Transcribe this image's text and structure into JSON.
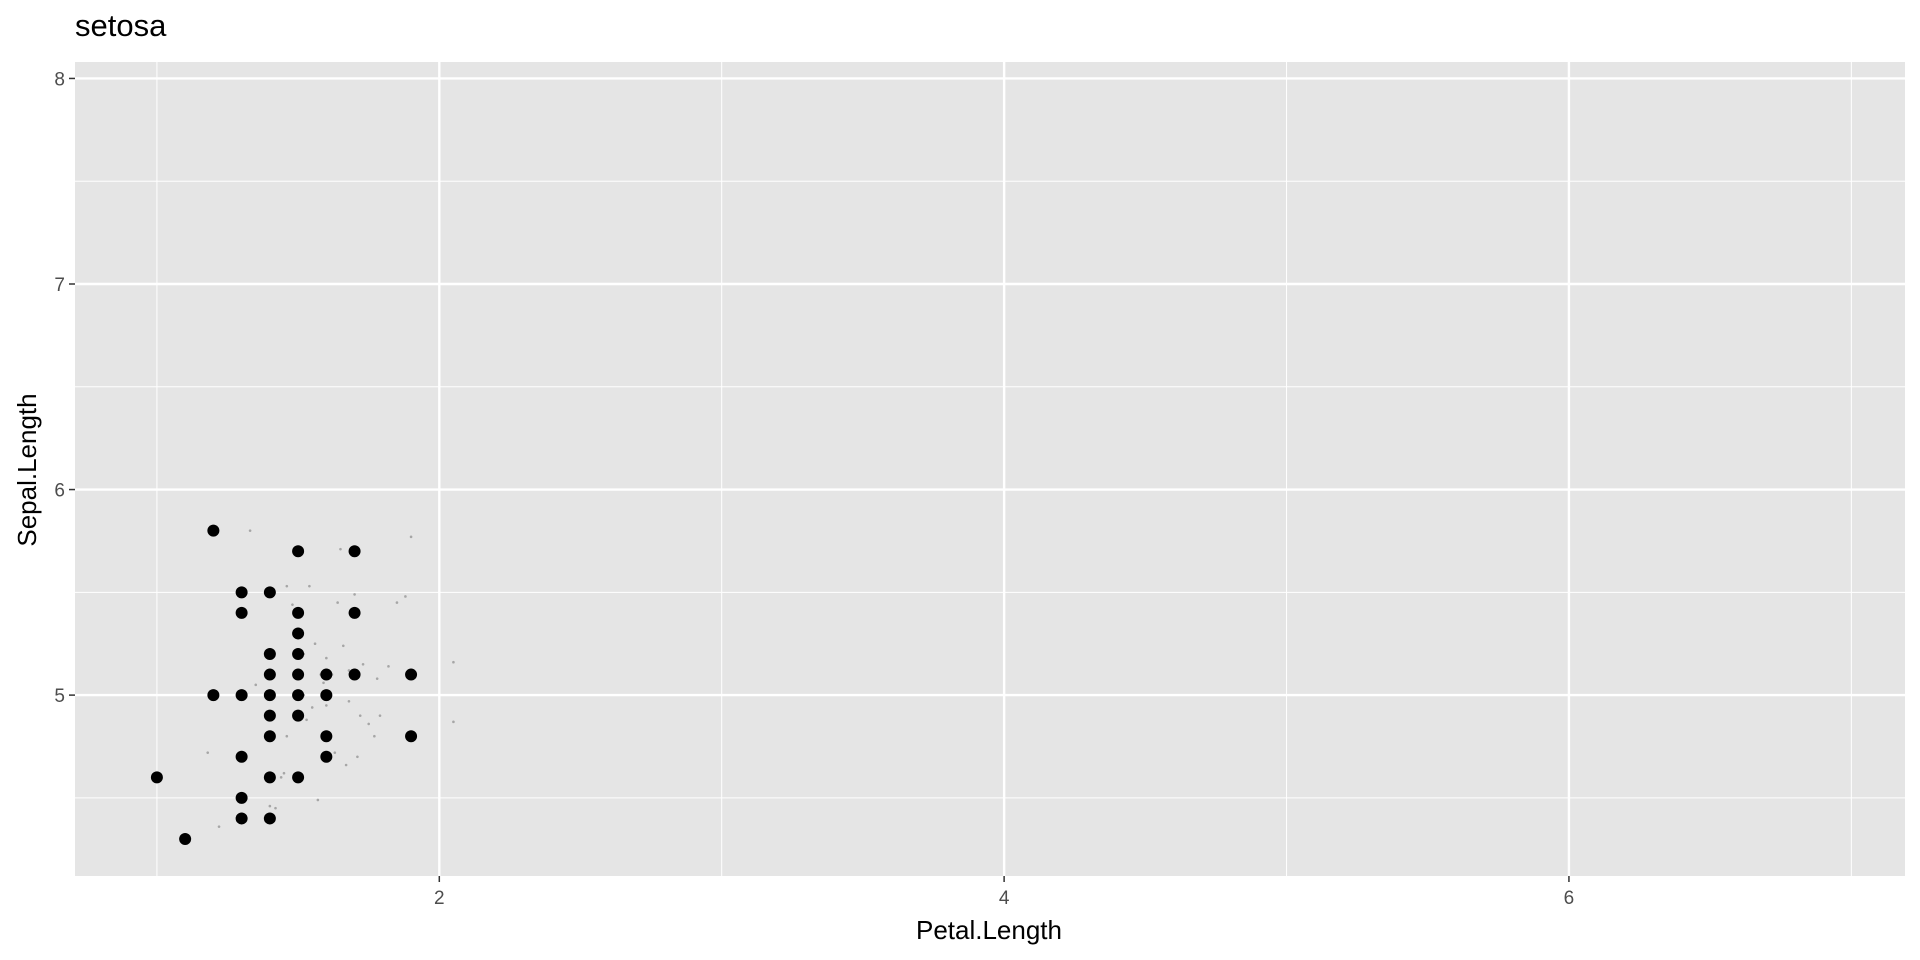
{
  "chart_data": {
    "type": "scatter",
    "title": "setosa",
    "xlabel": "Petal.Length",
    "ylabel": "Sepal.Length",
    "xlim": [
      0.71,
      7.19
    ],
    "ylim": [
      4.12,
      8.08
    ],
    "x_ticks_major": [
      2,
      4,
      6
    ],
    "x_ticks_minor": [
      1,
      3,
      5,
      7
    ],
    "y_ticks_major": [
      5,
      6,
      7,
      8
    ],
    "y_ticks_minor": [
      4.5,
      5.5,
      6.5,
      7.5
    ],
    "grid": true,
    "panel_color": "#e5e5e5",
    "grid_color": "#ffffff",
    "point_color": "#000000",
    "jitter_color": "#a6a6a6",
    "points": [
      {
        "x": 1.0,
        "y": 4.6
      },
      {
        "x": 1.1,
        "y": 4.3
      },
      {
        "x": 1.2,
        "y": 5.8
      },
      {
        "x": 1.2,
        "y": 5.0
      },
      {
        "x": 1.3,
        "y": 5.5
      },
      {
        "x": 1.3,
        "y": 5.4
      },
      {
        "x": 1.3,
        "y": 5.0
      },
      {
        "x": 1.3,
        "y": 4.7
      },
      {
        "x": 1.3,
        "y": 4.5
      },
      {
        "x": 1.3,
        "y": 4.4
      },
      {
        "x": 1.4,
        "y": 5.5
      },
      {
        "x": 1.4,
        "y": 5.2
      },
      {
        "x": 1.4,
        "y": 5.1
      },
      {
        "x": 1.4,
        "y": 5.0
      },
      {
        "x": 1.4,
        "y": 4.9
      },
      {
        "x": 1.4,
        "y": 4.8
      },
      {
        "x": 1.4,
        "y": 4.6
      },
      {
        "x": 1.4,
        "y": 4.4
      },
      {
        "x": 1.5,
        "y": 5.7
      },
      {
        "x": 1.5,
        "y": 5.4
      },
      {
        "x": 1.5,
        "y": 5.3
      },
      {
        "x": 1.5,
        "y": 5.2
      },
      {
        "x": 1.5,
        "y": 5.1
      },
      {
        "x": 1.5,
        "y": 5.0
      },
      {
        "x": 1.5,
        "y": 4.9
      },
      {
        "x": 1.5,
        "y": 4.6
      },
      {
        "x": 1.6,
        "y": 5.1
      },
      {
        "x": 1.6,
        "y": 5.0
      },
      {
        "x": 1.6,
        "y": 4.8
      },
      {
        "x": 1.6,
        "y": 4.7
      },
      {
        "x": 1.7,
        "y": 5.7
      },
      {
        "x": 1.7,
        "y": 5.4
      },
      {
        "x": 1.7,
        "y": 5.1
      },
      {
        "x": 1.9,
        "y": 5.1
      },
      {
        "x": 1.9,
        "y": 4.8
      }
    ],
    "jitter_points": [
      {
        "x": 1.18,
        "y": 4.72
      },
      {
        "x": 1.22,
        "y": 4.36
      },
      {
        "x": 1.33,
        "y": 5.8
      },
      {
        "x": 1.4,
        "y": 4.46
      },
      {
        "x": 1.42,
        "y": 4.45
      },
      {
        "x": 1.44,
        "y": 4.6
      },
      {
        "x": 1.46,
        "y": 5.53
      },
      {
        "x": 1.46,
        "y": 4.8
      },
      {
        "x": 1.48,
        "y": 5.44
      },
      {
        "x": 1.5,
        "y": 4.98
      },
      {
        "x": 1.52,
        "y": 5.2
      },
      {
        "x": 1.53,
        "y": 4.88
      },
      {
        "x": 1.54,
        "y": 5.53
      },
      {
        "x": 1.55,
        "y": 4.94
      },
      {
        "x": 1.56,
        "y": 5.25
      },
      {
        "x": 1.57,
        "y": 4.49
      },
      {
        "x": 1.58,
        "y": 5.1
      },
      {
        "x": 1.59,
        "y": 5.06
      },
      {
        "x": 1.6,
        "y": 5.18
      },
      {
        "x": 1.62,
        "y": 5.1
      },
      {
        "x": 1.63,
        "y": 4.72
      },
      {
        "x": 1.64,
        "y": 5.45
      },
      {
        "x": 1.65,
        "y": 5.71
      },
      {
        "x": 1.66,
        "y": 5.24
      },
      {
        "x": 1.67,
        "y": 4.66
      },
      {
        "x": 1.68,
        "y": 4.97
      },
      {
        "x": 1.7,
        "y": 5.49
      },
      {
        "x": 1.71,
        "y": 4.7
      },
      {
        "x": 1.72,
        "y": 4.9
      },
      {
        "x": 1.73,
        "y": 5.15
      },
      {
        "x": 1.75,
        "y": 4.86
      },
      {
        "x": 1.77,
        "y": 4.8
      },
      {
        "x": 1.78,
        "y": 5.08
      },
      {
        "x": 1.79,
        "y": 4.9
      },
      {
        "x": 1.82,
        "y": 5.14
      },
      {
        "x": 1.85,
        "y": 5.45
      },
      {
        "x": 1.88,
        "y": 5.48
      },
      {
        "x": 1.9,
        "y": 5.77
      },
      {
        "x": 2.05,
        "y": 5.16
      },
      {
        "x": 2.05,
        "y": 4.87
      },
      {
        "x": 1.35,
        "y": 5.05
      },
      {
        "x": 1.45,
        "y": 4.62
      },
      {
        "x": 1.52,
        "y": 5.0
      },
      {
        "x": 1.6,
        "y": 4.95
      },
      {
        "x": 1.68,
        "y": 5.12
      }
    ]
  }
}
